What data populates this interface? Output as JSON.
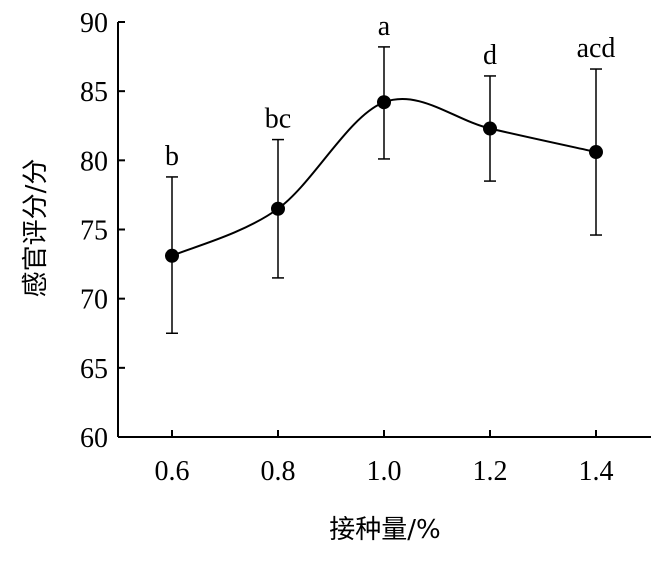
{
  "chart_data": {
    "type": "line",
    "x": [
      0.6,
      0.8,
      1.0,
      1.2,
      1.4
    ],
    "x_tick_labels": [
      "0.6",
      "0.8",
      "1.0",
      "1.2",
      "1.4"
    ],
    "series": [
      {
        "values": [
          73.1,
          76.5,
          84.2,
          82.3,
          80.6
        ],
        "error_upper": [
          78.8,
          81.5,
          88.2,
          86.1,
          86.6
        ],
        "error_lower": [
          67.5,
          71.5,
          80.1,
          78.5,
          74.6
        ],
        "labels": [
          "b",
          "bc",
          "a",
          "d",
          "acd"
        ]
      }
    ],
    "xlabel": "接种量/%",
    "ylabel": "感官评分/分",
    "ylim": [
      60,
      90
    ],
    "y_ticks": [
      60,
      65,
      70,
      75,
      80,
      85,
      90
    ],
    "grid": false,
    "color": "#000000"
  }
}
